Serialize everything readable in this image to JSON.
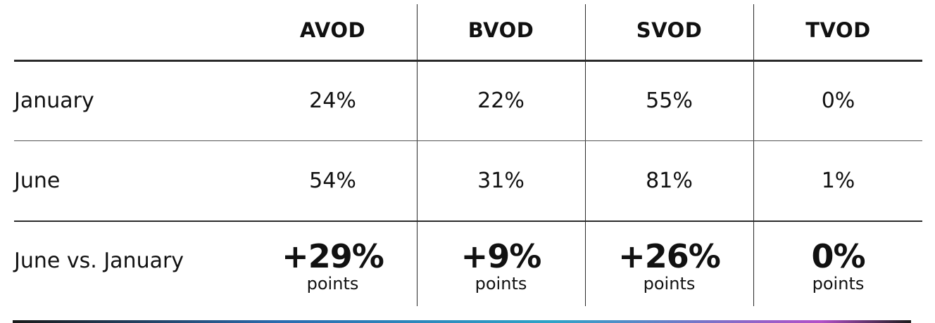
{
  "chart_data": {
    "type": "table",
    "columns": [
      "AVOD",
      "BVOD",
      "SVOD",
      "TVOD"
    ],
    "rows": [
      {
        "label": "January",
        "values": [
          "24%",
          "22%",
          "55%",
          "0%"
        ]
      },
      {
        "label": "June",
        "values": [
          "54%",
          "31%",
          "81%",
          "1%"
        ]
      }
    ],
    "delta_row": {
      "label": "June vs. January",
      "values": [
        "+29%",
        "+9%",
        "+26%",
        "0%"
      ],
      "unit": "points"
    }
  },
  "colors": {
    "text": "#111111",
    "rules": "#2a2a2a",
    "accent_gradient": [
      "#1a1a1a",
      "#2b6cb0",
      "#2ea3c7",
      "#b24fc8"
    ]
  }
}
